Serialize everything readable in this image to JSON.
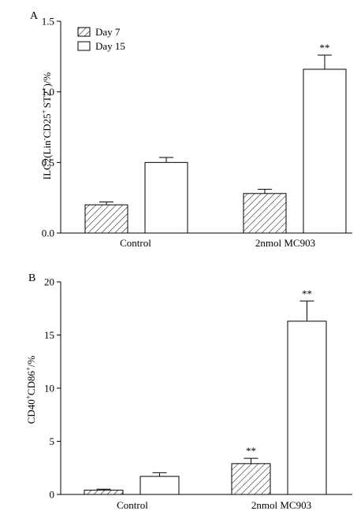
{
  "chart_data": [
    {
      "type": "bar",
      "panel_label": "A",
      "categories": [
        "Control",
        "2nmol MC903"
      ],
      "series": [
        {
          "name": "Day 7",
          "values": [
            0.2,
            0.28
          ],
          "errors": [
            0.02,
            0.03
          ],
          "pattern": "hatched"
        },
        {
          "name": "Day 15",
          "values": [
            0.5,
            1.16
          ],
          "errors": [
            0.035,
            0.1
          ],
          "pattern": "open"
        }
      ],
      "ylabel_main": "ILC2(Lin",
      "ylabel_sup1": "-",
      "ylabel_mid": "CD25",
      "ylabel_sup2": "+",
      "ylabel_st2": "ST2",
      "ylabel_sup3": "+",
      "ylabel_end": ")/%",
      "ylim": [
        0,
        1.5
      ],
      "yticks": [
        "0.0",
        "0.5",
        "1.0",
        "1.5"
      ],
      "annotations": [
        {
          "category_index": 1,
          "series_index": 1,
          "text": "**"
        }
      ],
      "legend_position": "top-left",
      "grid": false
    },
    {
      "type": "bar",
      "panel_label": "B",
      "categories": [
        "Control",
        "2nmol MC903"
      ],
      "series": [
        {
          "name": "Day 7",
          "values": [
            0.4,
            2.9
          ],
          "errors": [
            0.1,
            0.5
          ],
          "pattern": "hatched"
        },
        {
          "name": "Day 15",
          "values": [
            1.7,
            16.3
          ],
          "errors": [
            0.35,
            1.9
          ],
          "pattern": "open"
        }
      ],
      "ylabel_main": "CD40",
      "ylabel_sup1": "+",
      "ylabel_mid": "CD86",
      "ylabel_sup2": "+",
      "ylabel_end": "/%",
      "ylim": [
        0,
        20
      ],
      "yticks": [
        "0",
        "5",
        "10",
        "15",
        "20"
      ],
      "annotations": [
        {
          "category_index": 1,
          "series_index": 0,
          "text": "**"
        },
        {
          "category_index": 1,
          "series_index": 1,
          "text": "**"
        }
      ],
      "grid": false
    }
  ]
}
